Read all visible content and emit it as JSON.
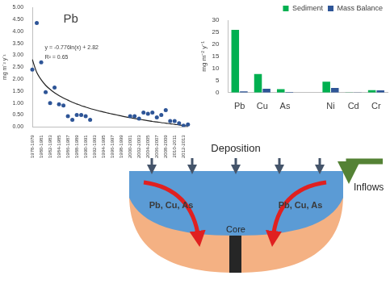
{
  "chart_data": [
    {
      "type": "scatter",
      "title": "Pb",
      "y_label": "mg m⁻² y⁻¹",
      "categories": [
        "1978-1979",
        null,
        "1980-1981",
        null,
        "1982-1983",
        null,
        "1984-1985",
        null,
        "1986-1987",
        null,
        "1988-1989",
        null,
        "1990-1991",
        null,
        "1992-1993",
        null,
        "1994-1995",
        null,
        "1996-1997",
        null,
        "1998-1999",
        null,
        "2000-2001",
        null,
        "2002-2003",
        null,
        "2004-2005",
        null,
        "2006-2007",
        null,
        "2008-2009",
        null,
        "2010-2011",
        null,
        "2012-2013",
        null
      ],
      "series": [
        {
          "type": "scatter",
          "color": "#2e5597",
          "marker": "circle",
          "values": [
            2.4,
            4.35,
            2.7,
            1.45,
            1.0,
            1.65,
            0.95,
            0.9,
            0.45,
            0.3,
            0.5,
            0.5,
            0.45,
            0.3,
            null,
            null,
            null,
            null,
            null,
            null,
            null,
            null,
            0.45,
            0.45,
            0.35,
            0.6,
            0.55,
            0.6,
            0.4,
            0.5,
            0.7,
            0.25,
            0.25,
            0.15,
            0.05,
            0.1
          ]
        },
        {
          "type": "line",
          "color": "#222222",
          "line_style": "solid",
          "values": [
            2.82,
            2.28,
            1.97,
            1.74,
            1.57,
            1.43,
            1.31,
            1.21,
            1.12,
            1.03,
            0.96,
            0.89,
            0.83,
            0.77,
            0.72,
            0.67,
            0.62,
            0.58,
            0.54,
            0.5,
            0.46,
            0.42,
            0.39,
            0.35,
            0.32,
            0.29,
            0.26,
            0.23,
            0.21,
            0.18,
            0.16,
            0.13,
            0.11,
            0.08,
            0.06,
            0.04
          ]
        }
      ],
      "annotations": [
        "y = -0.776ln(x) + 2.82",
        "R² = 0.65"
      ],
      "ylim": [
        0,
        5
      ],
      "yticks": [
        {
          "value": 0,
          "label": "0.00"
        },
        {
          "value": 0.5,
          "label": "0.50"
        },
        {
          "value": 1,
          "label": "1.00"
        },
        {
          "value": 1.5,
          "label": "1.50"
        },
        {
          "value": 2,
          "label": "2.00"
        },
        {
          "value": 2.5,
          "label": "2.50"
        },
        {
          "value": 3,
          "label": "3.00"
        },
        {
          "value": 3.5,
          "label": "3.50"
        },
        {
          "value": 4,
          "label": "4.00"
        },
        {
          "value": 4.5,
          "label": "4.50"
        },
        {
          "value": 5,
          "label": "5.00"
        }
      ],
      "grid": false
    },
    {
      "type": "bar",
      "y_label": "mg m⁻² y⁻¹",
      "categories": [
        "Pb",
        "Cu",
        "As",
        null,
        "Ni",
        "Cd",
        "Cr"
      ],
      "series": [
        {
          "name": "Sediment",
          "color": "#00b050",
          "values": [
            26,
            7.7,
            1.4,
            null,
            4.5,
            0.1,
            1.0
          ]
        },
        {
          "name": "Mass Balance",
          "color": "#2e5597",
          "values": [
            0.5,
            1.6,
            0.3,
            null,
            1.9,
            0.1,
            0.9
          ]
        }
      ],
      "ylim": [
        0,
        30
      ],
      "yticks": [
        0,
        5,
        10,
        15,
        20,
        25,
        30
      ],
      "legend": "top",
      "grid": false
    }
  ],
  "diagram": {
    "deposition": "Deposition",
    "inflows": "Inflows",
    "flux_left": "Pb, Cu, As",
    "flux_right": "Pb, Cu, As",
    "core": "Core"
  }
}
